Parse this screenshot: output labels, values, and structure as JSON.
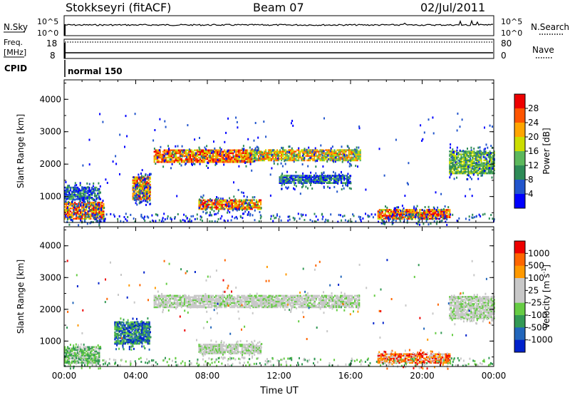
{
  "header": {
    "station": "Stokkseyri (fitACF)",
    "beam": "Beam 07",
    "date": "02/Jul/2011"
  },
  "noise_panel": {
    "left_label": "N.Sky",
    "right_label": "N.Search",
    "left_ticks": [
      "10^5",
      "10^0"
    ],
    "right_ticks": [
      "10^5",
      "10^0"
    ]
  },
  "freq_panel": {
    "left_label_1": "Freq.",
    "left_label_2": "[MHz]",
    "right_label": "Nave",
    "left_ticks": [
      "18",
      "8"
    ],
    "right_ticks": [
      "80",
      "0"
    ]
  },
  "cpid": {
    "label": "CPID",
    "value": "normal 150"
  },
  "colors": {
    "power_scale": [
      "#0000ff",
      "#2255cc",
      "#2e8b57",
      "#5cb85c",
      "#ccdd00",
      "#ffa500",
      "#ff5500",
      "#ee0000"
    ],
    "velocity_scale": [
      "#0022cc",
      "#2266bb",
      "#339955",
      "#66cc44",
      "#c8c8c8",
      "#c8c8c8",
      "#ff9900",
      "#ff6600",
      "#ee0000"
    ]
  },
  "chart_data": [
    {
      "type": "heatmap",
      "title": "",
      "xlabel": "",
      "ylabel": "Slant Range [km]",
      "x_ticks": [
        "00:00",
        "04:00",
        "08:00",
        "12:00",
        "16:00",
        "20:00",
        "00:00"
      ],
      "y_ticks": [
        1000,
        2000,
        3000,
        4000
      ],
      "ylim": [
        200,
        4600
      ],
      "xlim_hours": [
        0,
        24
      ],
      "colorbar_label": "Power [dB]",
      "colorbar_ticks": [
        4,
        8,
        12,
        16,
        20,
        24,
        28
      ],
      "echo_regions": [
        {
          "t0": 0.0,
          "t1": 2.2,
          "r0": 300,
          "r1": 800,
          "level": "red"
        },
        {
          "t0": 0.0,
          "t1": 2.0,
          "r0": 900,
          "r1": 1300,
          "level": "green-blue"
        },
        {
          "t0": 3.8,
          "t1": 4.8,
          "r0": 900,
          "r1": 1600,
          "level": "red"
        },
        {
          "t0": 5.0,
          "t1": 10.5,
          "r0": 2050,
          "r1": 2450,
          "level": "red"
        },
        {
          "t0": 10.5,
          "t1": 16.5,
          "r0": 2100,
          "r1": 2450,
          "level": "orange"
        },
        {
          "t0": 7.5,
          "t1": 11.0,
          "r0": 600,
          "r1": 900,
          "level": "red"
        },
        {
          "t0": 17.5,
          "t1": 21.5,
          "r0": 300,
          "r1": 600,
          "level": "red"
        },
        {
          "t0": 12.0,
          "t1": 16.0,
          "r0": 1400,
          "r1": 1650,
          "level": "blue-green"
        },
        {
          "t0": 21.5,
          "t1": 24.0,
          "r0": 1700,
          "r1": 2400,
          "level": "green"
        }
      ]
    },
    {
      "type": "heatmap",
      "title": "",
      "xlabel": "Time UT",
      "ylabel": "Slant Range [km]",
      "x_ticks": [
        "00:00",
        "04:00",
        "08:00",
        "12:00",
        "16:00",
        "20:00",
        "00:00"
      ],
      "y_ticks": [
        1000,
        2000,
        3000,
        4000
      ],
      "ylim": [
        200,
        4600
      ],
      "xlim_hours": [
        0,
        24
      ],
      "colorbar_label": "Velocity [m s^-1]",
      "colorbar_ticks": [
        1000,
        500,
        100,
        25,
        -25,
        -100,
        -500,
        -1000
      ],
      "echo_regions": [
        {
          "t0": 0.0,
          "t1": 2.0,
          "r0": 300,
          "r1": 800,
          "level": "green"
        },
        {
          "t0": 2.8,
          "t1": 4.8,
          "r0": 900,
          "r1": 1600,
          "level": "blue-green"
        },
        {
          "t0": 5.0,
          "t1": 16.5,
          "r0": 2050,
          "r1": 2450,
          "level": "grey"
        },
        {
          "t0": 7.5,
          "t1": 11.0,
          "r0": 600,
          "r1": 900,
          "level": "grey"
        },
        {
          "t0": 17.5,
          "t1": 21.5,
          "r0": 300,
          "r1": 600,
          "level": "orange"
        },
        {
          "t0": 21.5,
          "t1": 24.0,
          "r0": 1700,
          "r1": 2400,
          "level": "grey"
        }
      ]
    }
  ]
}
